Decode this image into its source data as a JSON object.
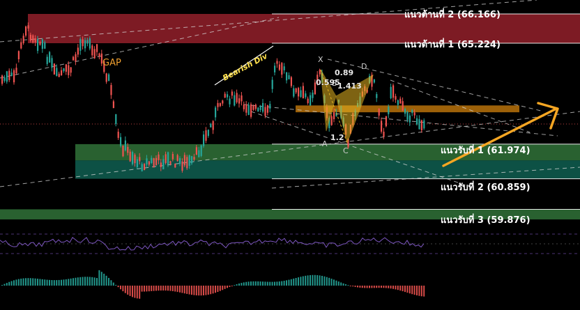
{
  "chart_data": {
    "type": "candlestick",
    "y_unit": "price",
    "ylim": [
      59.4,
      66.6
    ],
    "levels": {
      "resistance": [
        {
          "label": "แนวต้านที่ 2 (66.166)",
          "value": 66.166
        },
        {
          "label": "แนวต้านที่ 1 (65.224)",
          "value": 65.224
        }
      ],
      "support": [
        {
          "label": "แนวรับที่ 1 (61.974)",
          "value": 61.974
        },
        {
          "label": "แนวรับที่ 2 (60.859)",
          "value": 60.859
        },
        {
          "label": "แนวรับที่ 3 (59.876)",
          "value": 59.876
        }
      ]
    },
    "zones": [
      {
        "name": "resistance-zone",
        "from": 65.224,
        "to": 66.166,
        "color": "#8b1e28"
      },
      {
        "name": "support-zone-1",
        "from": 61.974,
        "to": 61.45,
        "color": "#2e6b35"
      },
      {
        "name": "support-zone-2",
        "from": 61.45,
        "to": 60.859,
        "color": "#0e5a4c"
      },
      {
        "name": "support-zone-3",
        "from": 59.876,
        "to": 59.55,
        "color": "#2e6b35"
      },
      {
        "name": "pattern-zone",
        "from": 63.22,
        "to": 63.0,
        "color": "#b8720a"
      }
    ],
    "annotations": {
      "gap": "GAP",
      "divergence": "Bearish Div",
      "pattern_points": [
        "X",
        "A",
        "B",
        "C",
        "D"
      ],
      "pattern_ratios": [
        "0.595",
        "0.89",
        "1.413",
        "1.2"
      ]
    },
    "colors": {
      "up": "#26a69a",
      "down": "#ef5350",
      "resistance": "#8b1e28",
      "support": "#2e6b35",
      "pattern": "#e6b422",
      "arrow": "#f5a623",
      "rsi": "#7e57c2"
    },
    "grid": false
  }
}
